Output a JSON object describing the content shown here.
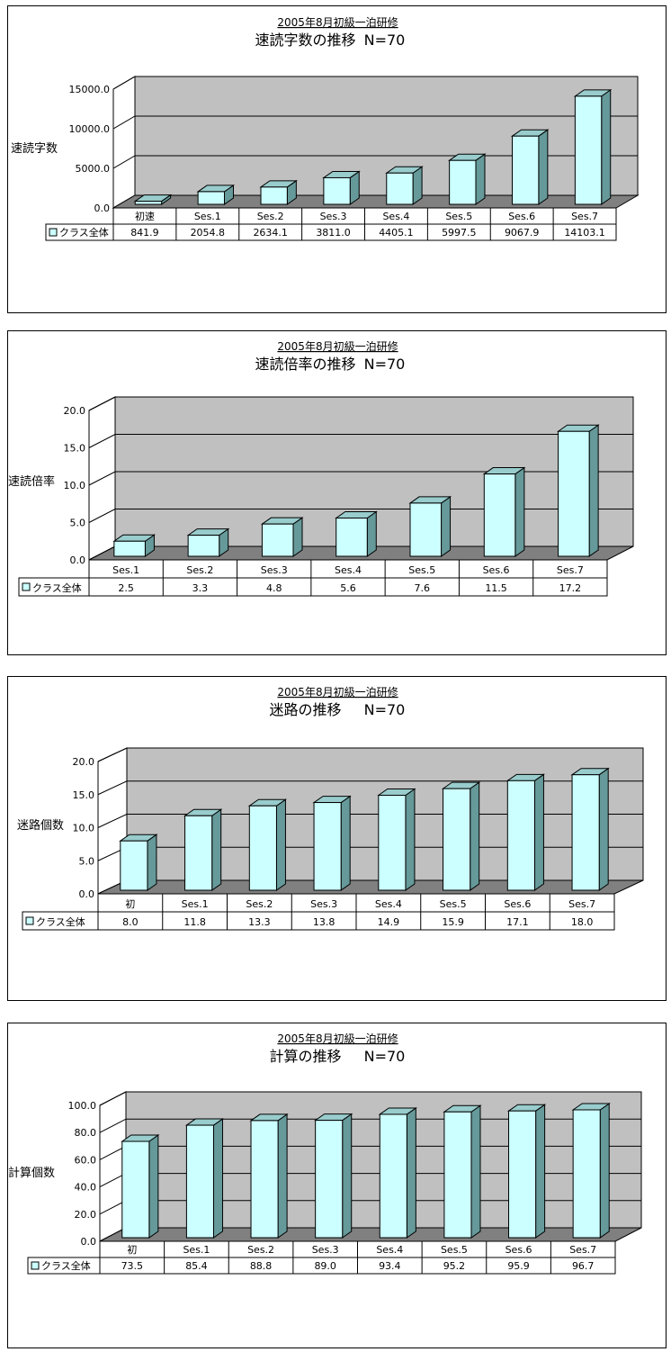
{
  "chart_data": [
    {
      "type": "bar",
      "subtitle": "2005年8月初級一泊研修",
      "title": "速読字数の推移",
      "n_label": "N=70",
      "ylabel": "速読字数",
      "ylim": [
        0,
        15000
      ],
      "yticks": [
        "0.0",
        "5000.0",
        "10000.0",
        "15000.0"
      ],
      "categories": [
        "初速",
        "Ses.1",
        "Ses.2",
        "Ses.3",
        "Ses.4",
        "Ses.5",
        "Ses.6",
        "Ses.7"
      ],
      "series": [
        {
          "name": "クラス全体",
          "values": [
            841.9,
            2054.8,
            2634.1,
            3811.0,
            4405.1,
            5997.5,
            9067.9,
            14103.1
          ],
          "labels": [
            "841.9",
            "2054.8",
            "2634.1",
            "3811.0",
            "4405.1",
            "5997.5",
            "9067.9",
            "14103.1"
          ]
        }
      ],
      "grid": true,
      "data_table": true,
      "colors": {
        "bar": "#ccffff",
        "bar_side": "#669999",
        "bar_top": "#99cccc",
        "wall": "#c0c0c0",
        "floor": "#808080"
      }
    },
    {
      "type": "bar",
      "subtitle": "2005年8月初級一泊研修",
      "title": "速読倍率の推移",
      "n_label": "N=70",
      "ylabel": "速読倍率",
      "ylim": [
        0,
        20
      ],
      "yticks": [
        "0.0",
        "5.0",
        "10.0",
        "15.0",
        "20.0"
      ],
      "categories": [
        "Ses.1",
        "Ses.2",
        "Ses.3",
        "Ses.4",
        "Ses.5",
        "Ses.6",
        "Ses.7"
      ],
      "series": [
        {
          "name": "クラス全体",
          "values": [
            2.5,
            3.3,
            4.8,
            5.6,
            7.6,
            11.5,
            17.2
          ],
          "labels": [
            "2.5",
            "3.3",
            "4.8",
            "5.6",
            "7.6",
            "11.5",
            "17.2"
          ]
        }
      ],
      "grid": true,
      "data_table": true,
      "colors": {
        "bar": "#ccffff",
        "bar_side": "#669999",
        "bar_top": "#99cccc",
        "wall": "#c0c0c0",
        "floor": "#808080"
      }
    },
    {
      "type": "bar",
      "subtitle": "2005年8月初級一泊研修",
      "title": "迷路の推移",
      "n_label": "N=70",
      "ylabel": "迷路個数",
      "ylim": [
        0,
        20
      ],
      "yticks": [
        "0.0",
        "5.0",
        "10.0",
        "15.0",
        "20.0"
      ],
      "categories": [
        "初",
        "Ses.1",
        "Ses.2",
        "Ses.3",
        "Ses.4",
        "Ses.5",
        "Ses.6",
        "Ses.7"
      ],
      "series": [
        {
          "name": "クラス全体",
          "values": [
            8.0,
            11.8,
            13.3,
            13.8,
            14.9,
            15.9,
            17.1,
            18.0
          ],
          "labels": [
            "8.0",
            "11.8",
            "13.3",
            "13.8",
            "14.9",
            "15.9",
            "17.1",
            "18.0"
          ]
        }
      ],
      "grid": true,
      "data_table": true,
      "colors": {
        "bar": "#ccffff",
        "bar_side": "#669999",
        "bar_top": "#99cccc",
        "wall": "#c0c0c0",
        "floor": "#808080"
      }
    },
    {
      "type": "bar",
      "subtitle": "2005年8月初級一泊研修",
      "title": "計算の推移",
      "n_label": "N=70",
      "ylabel": "計算個数",
      "ylim": [
        0,
        100
      ],
      "yticks": [
        "0.0",
        "20.0",
        "40.0",
        "60.0",
        "80.0",
        "100.0"
      ],
      "categories": [
        "初",
        "Ses.1",
        "Ses.2",
        "Ses.3",
        "Ses.4",
        "Ses.5",
        "Ses.6",
        "Ses.7"
      ],
      "series": [
        {
          "name": "クラス全体",
          "values": [
            73.5,
            85.4,
            88.8,
            89.0,
            93.4,
            95.2,
            95.9,
            96.7
          ],
          "labels": [
            "73.5",
            "85.4",
            "88.8",
            "89.0",
            "93.4",
            "95.2",
            "95.9",
            "96.7"
          ]
        }
      ],
      "grid": true,
      "data_table": true,
      "colors": {
        "bar": "#ccffff",
        "bar_side": "#669999",
        "bar_top": "#99cccc",
        "wall": "#c0c0c0",
        "floor": "#808080"
      }
    }
  ]
}
